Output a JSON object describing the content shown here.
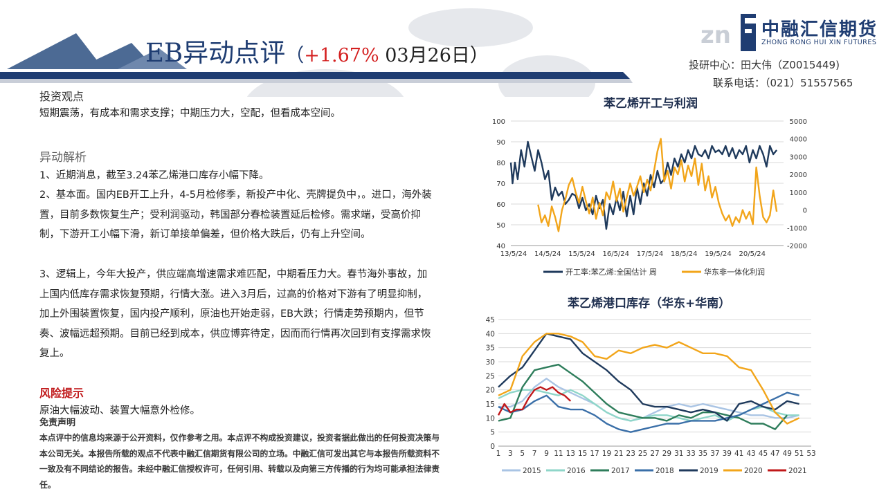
{
  "header": {
    "title_main": "EB异动点评",
    "title_paren_open": "（",
    "title_change": "+1.67%",
    "title_date": " 03月26日）",
    "logo_cn": "中融汇信期货",
    "logo_en": "ZHONG RONG HUI XIN FUTURES",
    "contact_line1": "投研中心：田大伟（Z0015449)",
    "contact_line2": "联系电话：（021）51557565"
  },
  "left": {
    "view_title": "投资观点",
    "view_text": "短期震荡，有成本和需求支撑；中期压力大，空配，但看成本空间。",
    "analysis_title": "异动解析",
    "analysis_p1": "1、近期消息，截至3.24苯乙烯港口库存小幅下降。",
    "analysis_p2": "2、基本面。国内EB开工上升，4-5月检修季，新投产中化、壳牌提负中，。进口，海外装置，目前多数恢复生产；受利润驱动，韩国部分春检装置延后检修。需求端，受高价抑制，下游开工小幅下滑，新订单接单偏差，但价格大跌后，仍有上升空间。",
    "analysis_p3": "3、逻辑上，今年大投产，供应端高增速需求难匹配，中期看压力大。春节海外事故，加上国内低库存需求恢复预期，行情大涨。进入3月后，过高的价格对下游有了明显抑制，加上外围装置恢复，国内投产顺利，原油也开始走弱，EB大跌；行情走势预期内，但节奏、波幅远超预期。目前已经到成本，供应博弈待定，因而而行情再次回到有支撑需求恢复上。",
    "risk_title": "风险提示",
    "risk_text": "原油大幅波动、装置大幅意外检修。",
    "disclaimer_title": "免责声明",
    "disclaimer_text": "本点评中的信息均来源于公开资料，仅作参考之用。本点评不构成投资建议，投资者据此做出的任何投资决策与本公司无关。本报告所载的观点不代表中融汇信期货有限公司的立场。中融汇信可发出其它与本报告所载资料不一致及有不同结论的报告。未经中融汇信授权许可，任何引用、转载以及向第三方传播的行为均可能承担法律责任。"
  },
  "chart_data": [
    {
      "type": "line",
      "title": "苯乙烯开工与利润",
      "x_ticks": [
        "13/5/24",
        "14/5/24",
        "15/5/24",
        "16/5/24",
        "17/5/24",
        "18/5/24",
        "19/5/24",
        "20/5/24"
      ],
      "ylim_left": [
        40,
        100
      ],
      "yticks_left": [
        40,
        50,
        60,
        70,
        80,
        90,
        100
      ],
      "ylim_right": [
        -2000,
        5000
      ],
      "yticks_right": [
        -2000,
        -1000,
        0,
        1000,
        2000,
        3000,
        4000,
        5000
      ],
      "grid": true,
      "legend": "bottom",
      "series": [
        {
          "name": "开工率:苯乙烯:全国估计 周",
          "color": "#1f3a5c",
          "axis": "left",
          "x": [
            0,
            0.05,
            0.12,
            0.2,
            0.3,
            0.4,
            0.5,
            0.6,
            0.7,
            0.8,
            0.9,
            1.0,
            1.1,
            1.2,
            1.3,
            1.4,
            1.5,
            1.6,
            1.7,
            1.8,
            1.9,
            2.0,
            2.1,
            2.2,
            2.3,
            2.4,
            2.5,
            2.6,
            2.7,
            2.8,
            2.9,
            3.0,
            3.1,
            3.2,
            3.3,
            3.4,
            3.5,
            3.6,
            3.7,
            3.8,
            3.9,
            4.0,
            4.1,
            4.2,
            4.3,
            4.4,
            4.5,
            4.6,
            4.7,
            4.8,
            4.9,
            5.0,
            5.1,
            5.2,
            5.3,
            5.4,
            5.5,
            5.6,
            5.7,
            5.8,
            5.9,
            6.0,
            6.1,
            6.2,
            6.3,
            6.4,
            6.5,
            6.6,
            6.7,
            6.8,
            6.9,
            7.0,
            7.1,
            7.2,
            7.3,
            7.4,
            7.5,
            7.6,
            7.7,
            7.8
          ],
          "values": [
            80,
            70,
            80,
            72,
            86,
            78,
            90,
            83,
            76,
            86,
            80,
            72,
            76,
            62,
            68,
            64,
            66,
            60,
            62,
            65,
            64,
            58,
            63,
            57,
            60,
            55,
            64,
            58,
            62,
            48,
            60,
            55,
            63,
            57,
            66,
            54,
            64,
            55,
            68,
            60,
            70,
            64,
            74,
            68,
            76,
            70,
            72,
            80,
            74,
            82,
            78,
            84,
            80,
            86,
            82,
            88,
            84,
            83,
            86,
            82,
            88,
            85,
            86,
            84,
            88,
            83,
            87,
            82,
            86,
            84,
            88,
            80,
            86,
            82,
            88,
            84,
            78,
            88,
            84,
            86
          ]
        },
        {
          "name": "华东非一体化利润",
          "color": "#f2a51a",
          "axis": "right",
          "x": [
            0.8,
            0.9,
            1.0,
            1.1,
            1.2,
            1.3,
            1.4,
            1.5,
            1.6,
            1.7,
            1.8,
            1.9,
            2.0,
            2.1,
            2.2,
            2.3,
            2.4,
            2.5,
            2.6,
            2.7,
            2.8,
            2.9,
            3.0,
            3.1,
            3.2,
            3.3,
            3.4,
            3.5,
            3.6,
            3.7,
            3.8,
            3.9,
            4.0,
            4.1,
            4.2,
            4.3,
            4.4,
            4.5,
            4.6,
            4.7,
            4.8,
            4.9,
            5.0,
            5.1,
            5.2,
            5.3,
            5.4,
            5.5,
            5.6,
            5.7,
            5.8,
            5.9,
            6.0,
            6.1,
            6.2,
            6.3,
            6.4,
            6.5,
            6.6,
            6.7,
            6.8,
            6.9,
            7.0,
            7.1,
            7.2,
            7.3,
            7.4,
            7.5,
            7.6,
            7.7,
            7.8
          ],
          "values": [
            300,
            -700,
            -300,
            -900,
            200,
            -400,
            -1200,
            0,
            600,
            1400,
            1800,
            1000,
            400,
            1300,
            500,
            -200,
            700,
            -500,
            400,
            -300,
            1000,
            600,
            1600,
            500,
            1200,
            -100,
            700,
            1500,
            800,
            1300,
            1900,
            1000,
            1700,
            1100,
            2200,
            3300,
            4000,
            1600,
            2200,
            1200,
            2400,
            2000,
            2800,
            1600,
            2500,
            1900,
            2900,
            1400,
            2600,
            1100,
            1900,
            700,
            1300,
            400,
            -200,
            -600,
            -300,
            -900,
            -400,
            -700,
            0,
            -500,
            -100,
            -800,
            2400,
            800,
            -400,
            -700,
            -300,
            1100,
            -100
          ]
        }
      ]
    },
    {
      "type": "line",
      "title": "苯乙烯港口库存（华东+华南）",
      "x_ticks": [
        1,
        3,
        5,
        7,
        9,
        11,
        13,
        15,
        17,
        19,
        21,
        23,
        25,
        27,
        29,
        31,
        33,
        35,
        37,
        39,
        41,
        43,
        45,
        47,
        49,
        51,
        53
      ],
      "ylim": [
        0,
        45
      ],
      "yticks": [
        0,
        5,
        10,
        15,
        20,
        25,
        30,
        35,
        40,
        45
      ],
      "grid": true,
      "legend": "bottom",
      "series": [
        {
          "name": "2015",
          "color": "#a9c4e4",
          "x": [
            1,
            3,
            5,
            7,
            9,
            11,
            13,
            15,
            17,
            19,
            21,
            23,
            25,
            27,
            29,
            31,
            33,
            35,
            37,
            39,
            41,
            43,
            45,
            47,
            49,
            51
          ],
          "values": [
            14,
            14,
            16,
            21,
            24,
            21,
            19,
            17,
            15,
            12,
            10,
            9,
            10,
            12,
            14,
            15,
            14,
            15,
            14,
            13,
            12,
            11,
            11,
            10,
            10,
            11
          ]
        },
        {
          "name": "2016",
          "color": "#8fd6c9",
          "x": [
            1,
            3,
            5,
            7,
            9,
            11,
            13,
            15,
            17,
            19,
            21,
            23,
            25,
            27,
            29,
            31,
            33,
            35,
            37,
            39,
            41,
            43,
            45,
            47,
            49,
            51
          ],
          "values": [
            17,
            19,
            20,
            20,
            19,
            18,
            20,
            18,
            15,
            12,
            10,
            9,
            10,
            11,
            11,
            10,
            9,
            10,
            11,
            9,
            11,
            13,
            14,
            12,
            11,
            11
          ]
        },
        {
          "name": "2017",
          "color": "#2e7d5b",
          "x": [
            1,
            3,
            5,
            7,
            9,
            11,
            13,
            15,
            17,
            19,
            21,
            23,
            25,
            27,
            29,
            31,
            33,
            35,
            37,
            39,
            41,
            43,
            45,
            47,
            49
          ],
          "values": [
            9,
            10,
            21,
            27,
            28,
            29,
            26,
            23,
            19,
            15,
            12,
            11,
            10,
            10,
            9,
            11,
            10,
            12,
            12,
            11,
            10,
            8,
            8,
            6,
            11
          ]
        },
        {
          "name": "2018",
          "color": "#3a6fa8",
          "x": [
            1,
            3,
            5,
            7,
            9,
            11,
            13,
            15,
            17,
            19,
            21,
            23,
            25,
            27,
            29,
            31,
            33,
            35,
            37,
            39,
            41,
            43,
            45,
            47,
            49,
            51
          ],
          "values": [
            14,
            12,
            13,
            16,
            18,
            14,
            13,
            13,
            11,
            8,
            6,
            5,
            6,
            7,
            8,
            8,
            9,
            9,
            9,
            10,
            11,
            13,
            15,
            17,
            19,
            18
          ]
        },
        {
          "name": "2019",
          "color": "#1f3a5c",
          "x": [
            1,
            3,
            5,
            7,
            9,
            11,
            13,
            15,
            17,
            19,
            21,
            23,
            25,
            27,
            29,
            31,
            33,
            35,
            37,
            39,
            41,
            43,
            45,
            47,
            49,
            51
          ],
          "values": [
            21,
            25,
            28,
            34,
            40,
            39,
            38,
            33,
            30,
            27,
            23,
            20,
            15,
            14,
            14,
            13,
            12,
            13,
            12,
            9,
            15,
            16,
            14,
            13,
            16,
            15
          ]
        },
        {
          "name": "2020",
          "color": "#f2a51a",
          "x": [
            1,
            3,
            5,
            7,
            9,
            11,
            13,
            15,
            17,
            19,
            21,
            23,
            25,
            27,
            29,
            31,
            33,
            35,
            37,
            39,
            41,
            43,
            45,
            47,
            49,
            51
          ],
          "values": [
            18,
            20,
            32,
            37,
            40,
            40,
            39,
            37,
            32,
            31,
            34,
            33,
            35,
            36,
            35,
            37,
            35,
            33,
            33,
            32,
            28,
            27,
            20,
            12,
            8,
            10
          ]
        },
        {
          "name": "2021",
          "color": "#c0181a",
          "x": [
            1,
            2,
            3,
            4,
            5,
            6,
            7,
            8,
            9,
            10,
            11,
            12,
            13
          ],
          "values": [
            11,
            15,
            12,
            13,
            13,
            17,
            20,
            21,
            20,
            21,
            19,
            18,
            16
          ]
        }
      ]
    }
  ]
}
